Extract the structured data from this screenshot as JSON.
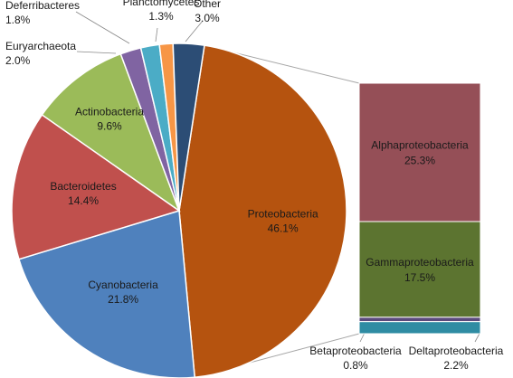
{
  "chart_data": {
    "type": "pie",
    "variant": "pie-of-pie (bar of pie)",
    "title": "",
    "pie": {
      "slices": [
        {
          "label": "Proteobacteria",
          "value": 46.1,
          "display": "46.1%",
          "color": "#b5530f",
          "exploded_to_bar": true
        },
        {
          "label": "Cyanobacteria",
          "value": 21.8,
          "display": "21.8%",
          "color": "#4f81bd"
        },
        {
          "label": "Bacteroidetes",
          "value": 14.4,
          "display": "14.4%",
          "color": "#c0504d"
        },
        {
          "label": "Actinobacteria",
          "value": 9.6,
          "display": "9.6%",
          "color": "#9bbb59"
        },
        {
          "label": "Euryarchaeota",
          "value": 2.0,
          "display": "2.0%",
          "color": "#8064a2"
        },
        {
          "label": "Deferribacteres",
          "value": 1.8,
          "display": "1.8%",
          "color": "#4bacc6"
        },
        {
          "label": "Planctomycetes",
          "value": 1.3,
          "display": "1.3%",
          "color": "#f79646"
        },
        {
          "label": "Other",
          "value": 3.0,
          "display": "3.0%",
          "color": "#2c4d75"
        }
      ]
    },
    "bar": {
      "parent": "Proteobacteria",
      "segments": [
        {
          "label": "Alphaproteobacteria",
          "value": 25.3,
          "display": "25.3%",
          "color": "#954f57"
        },
        {
          "label": "Gammaproteobacteria",
          "value": 17.5,
          "display": "17.5%",
          "color": "#5c7430"
        },
        {
          "label": "Betaproteobacteria",
          "value": 0.8,
          "display": "0.8%",
          "color": "#5b4a7c"
        },
        {
          "label": "Deltaproteobacteria",
          "value": 2.2,
          "display": "2.2%",
          "color": "#2f8ca3"
        }
      ]
    }
  }
}
